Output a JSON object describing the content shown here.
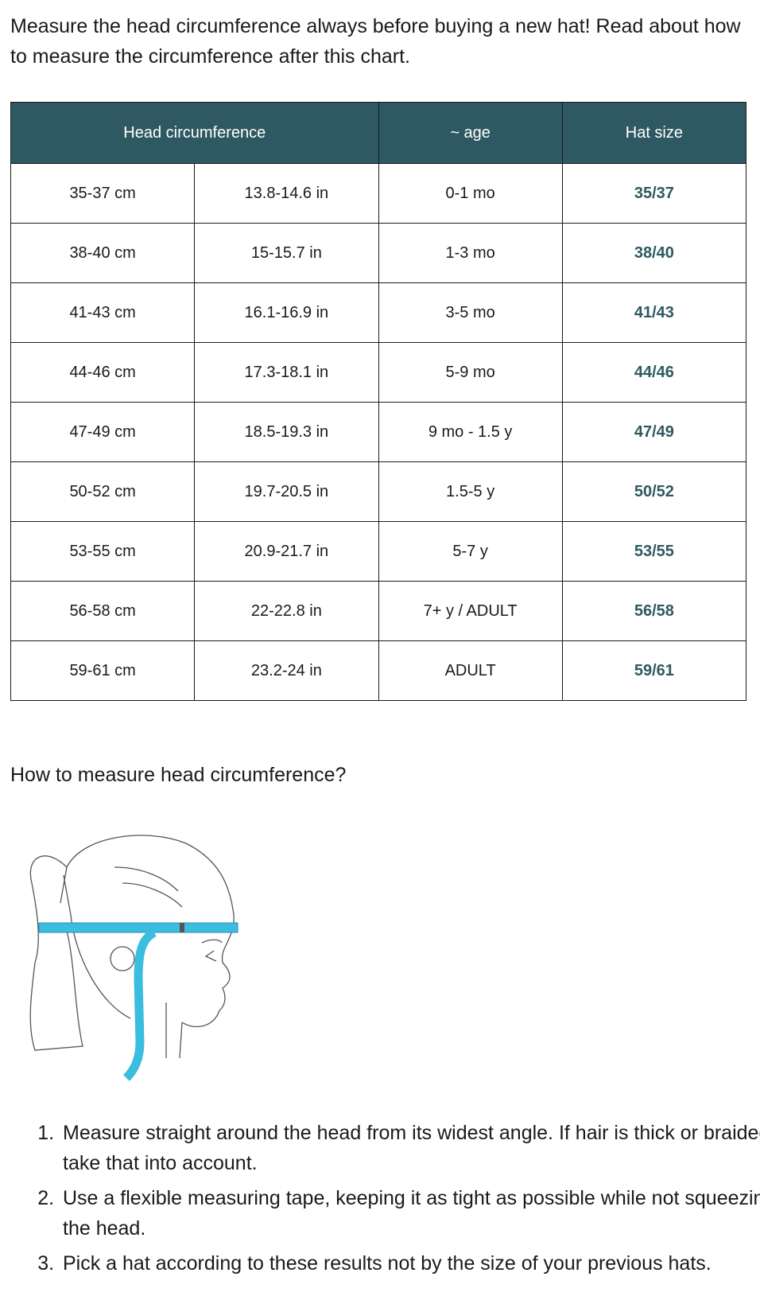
{
  "intro": "Measure the head circumference always before buying a new hat! Read about how to measure the circumference after this chart.",
  "table": {
    "headers": [
      "Head circumference",
      "~ age",
      "Hat size"
    ],
    "rows": [
      [
        "35-37 cm",
        "13.8-14.6 in",
        "0-1 mo",
        "35/37"
      ],
      [
        "38-40 cm",
        "15-15.7 in",
        "1-3 mo",
        "38/40"
      ],
      [
        "41-43 cm",
        "16.1-16.9 in",
        "3-5 mo",
        "41/43"
      ],
      [
        "44-46 cm",
        "17.3-18.1 in",
        "5-9 mo",
        "44/46"
      ],
      [
        "47-49 cm",
        "18.5-19.3 in",
        "9 mo - 1.5 y",
        "47/49"
      ],
      [
        "50-52 cm",
        "19.7-20.5 in",
        "1.5-5 y",
        "50/52"
      ],
      [
        "53-55 cm",
        "20.9-21.7 in",
        "5-7 y",
        "53/55"
      ],
      [
        "56-58 cm",
        "22-22.8 in",
        "7+ y / ADULT",
        "56/58"
      ],
      [
        "59-61 cm",
        "23.2-24 in",
        "ADULT",
        "59/61"
      ]
    ]
  },
  "howto": {
    "title": "How to measure head circumference?",
    "steps": [
      "Measure straight around the head from its widest angle. If hair is thick or braided, take that into account.",
      "Use a flexible measuring tape, keeping it as tight as possible while not squeezing the head.",
      "Pick a hat according to these results not by the size of your previous hats."
    ]
  },
  "colors": {
    "header_bg": "#2f5962",
    "size_text": "#2f5962",
    "tape": "#3bbde0"
  },
  "illustration": "head-measuring-tape-drawing"
}
